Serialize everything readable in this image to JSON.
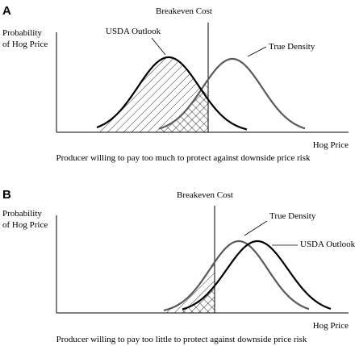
{
  "panels": [
    {
      "letter": "A",
      "y_label_line1": "Probability",
      "y_label_line2": "of Hog Price",
      "x_label": "Hog Price",
      "breakeven_label": "Breakeven Cost",
      "curve_labels": {
        "outlook": "USDA Outlook",
        "true": "True Density"
      },
      "caption": "Producer willing to pay too much to protect against downside price risk"
    },
    {
      "letter": "B",
      "y_label_line1": "Probability",
      "y_label_line2": "of Hog Price",
      "x_label": "Hog Price",
      "breakeven_label": "Breakeven Cost",
      "curve_labels": {
        "outlook": "USDA Outlook",
        "true": "True Density"
      },
      "caption": "Producer willing to pay too little to protect against downside price risk"
    }
  ],
  "colors": {
    "outlook_curve": "#000000",
    "true_curve": "#5a5a5a",
    "axis": "#000000",
    "hatch": "#000000"
  }
}
